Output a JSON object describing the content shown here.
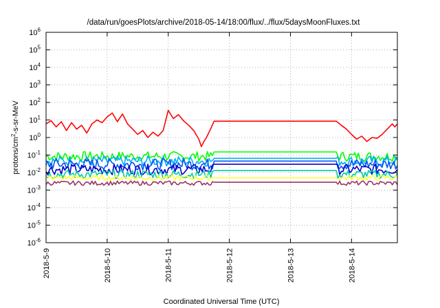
{
  "chart_data": {
    "type": "line",
    "title": "/data/run/goesPlots/archive/2018-05-14/18:00/flux/../flux/5daysMoonFluxes.txt",
    "xlabel": "Coordinated Universal Time (UTC)",
    "ylabel": {
      "pre": "protons/cm",
      "sup": "2",
      "post": "-s-sr-MeV"
    },
    "x_range": [
      "2018-05-09 00:00",
      "2018-05-14 18:00"
    ],
    "y_range": [
      1e-06,
      1000000.0
    ],
    "y_scale": "log",
    "grid": true,
    "x_ticks": [
      "2018-5-9",
      "2018-5-10",
      "2018-5-11",
      "2018-5-12",
      "2018-5-13",
      "2018-5-14"
    ],
    "y_ticks": [
      {
        "base": "10",
        "exp": "-6"
      },
      {
        "base": "10",
        "exp": "-5"
      },
      {
        "base": "10",
        "exp": "-4"
      },
      {
        "base": "10",
        "exp": "-3"
      },
      {
        "base": "10",
        "exp": "-2"
      },
      {
        "base": "10",
        "exp": "-1"
      },
      {
        "base": "10",
        "exp": "0"
      },
      {
        "base": "10",
        "exp": "1"
      },
      {
        "base": "10",
        "exp": "2"
      },
      {
        "base": "10",
        "exp": "3"
      },
      {
        "base": "10",
        "exp": "4"
      },
      {
        "base": "10",
        "exp": "5"
      },
      {
        "base": "10",
        "exp": "6"
      }
    ],
    "series": [
      {
        "color": "#ff0000",
        "gap": [
          "2018-05-11 18:00",
          "2018-05-13 18:00"
        ],
        "gap_value": 8.5,
        "points": [
          [
            "2018-05-09 00:00",
            6
          ],
          [
            "2018-05-09 02:00",
            9
          ],
          [
            "2018-05-09 04:00",
            4
          ],
          [
            "2018-05-09 06:00",
            8
          ],
          [
            "2018-05-09 08:00",
            2.5
          ],
          [
            "2018-05-09 10:00",
            7
          ],
          [
            "2018-05-09 12:00",
            3
          ],
          [
            "2018-05-09 14:00",
            5
          ],
          [
            "2018-05-09 16:00",
            1.8
          ],
          [
            "2018-05-09 18:00",
            6
          ],
          [
            "2018-05-09 20:00",
            10
          ],
          [
            "2018-05-09 22:00",
            7
          ],
          [
            "2018-05-10 00:00",
            15
          ],
          [
            "2018-05-10 02:00",
            25
          ],
          [
            "2018-05-10 04:00",
            8
          ],
          [
            "2018-05-10 06:00",
            22
          ],
          [
            "2018-05-10 08:00",
            6
          ],
          [
            "2018-05-10 10:00",
            3
          ],
          [
            "2018-05-10 12:00",
            1.5
          ],
          [
            "2018-05-10 14:00",
            2.5
          ],
          [
            "2018-05-10 16:00",
            1.0
          ],
          [
            "2018-05-10 18:00",
            2
          ],
          [
            "2018-05-10 20:00",
            1.2
          ],
          [
            "2018-05-10 22:00",
            2.5
          ],
          [
            "2018-05-11 00:00",
            35
          ],
          [
            "2018-05-11 02:00",
            12
          ],
          [
            "2018-05-11 04:00",
            20
          ],
          [
            "2018-05-11 06:00",
            9
          ],
          [
            "2018-05-11 08:00",
            5
          ],
          [
            "2018-05-11 10:00",
            2.5
          ],
          [
            "2018-05-11 12:00",
            0.8
          ],
          [
            "2018-05-11 13:00",
            0.3
          ],
          [
            "2018-05-11 14:00",
            0.6
          ],
          [
            "2018-05-11 15:00",
            1.0
          ],
          [
            "2018-05-11 16:00",
            2
          ],
          [
            "2018-05-11 17:00",
            4
          ],
          [
            "2018-05-13 18:00",
            8.5
          ],
          [
            "2018-05-13 20:00",
            5
          ],
          [
            "2018-05-13 22:00",
            3
          ],
          [
            "2018-05-14 00:00",
            1.5
          ],
          [
            "2018-05-14 02:00",
            0.8
          ],
          [
            "2018-05-14 04:00",
            1.2
          ],
          [
            "2018-05-14 06:00",
            0.6
          ],
          [
            "2018-05-14 08:00",
            1.0
          ],
          [
            "2018-05-14 10:00",
            0.9
          ],
          [
            "2018-05-14 12:00",
            1.5
          ],
          [
            "2018-05-14 14:00",
            3
          ],
          [
            "2018-05-14 16:00",
            6
          ],
          [
            "2018-05-14 17:00",
            4
          ],
          [
            "2018-05-14 18:00",
            6
          ]
        ]
      },
      {
        "color": "#00ff00",
        "base": 0.085,
        "spread": 0.55,
        "gap_value": 0.15
      },
      {
        "color": "#00aaff",
        "base": 0.045,
        "spread": 0.6,
        "gap_value": 0.065
      },
      {
        "color": "#0055ee",
        "base": 0.03,
        "spread": 0.65,
        "gap_value": 0.045
      },
      {
        "color": "#0000cc",
        "base": 0.015,
        "spread": 0.6,
        "gap_value": 0.03
      },
      {
        "color": "#00ccaa",
        "base": 0.008,
        "spread": 0.5,
        "gap_value": 0.013
      },
      {
        "color": "#ffff33",
        "base": 0.005,
        "spread": 0.3,
        "gap_value": 0.005
      },
      {
        "color": "#993366",
        "base": 0.0025,
        "spread": 0.25,
        "gap_value": 0.0028
      }
    ]
  }
}
